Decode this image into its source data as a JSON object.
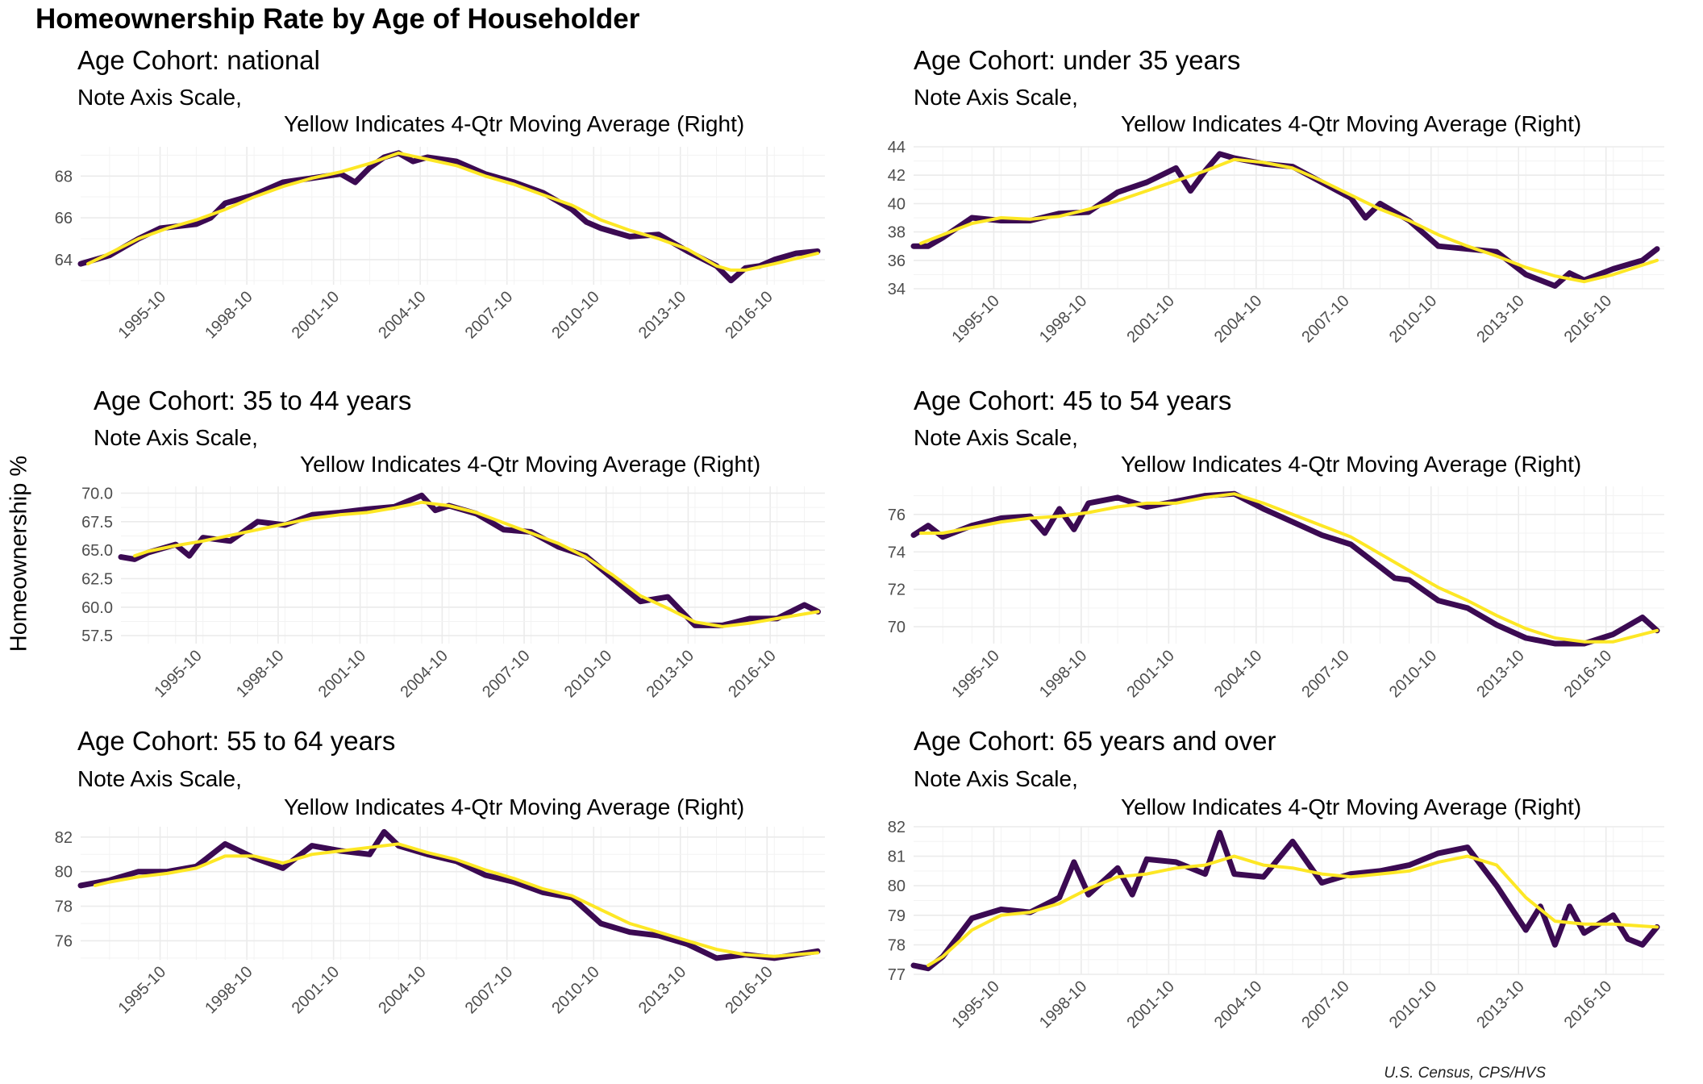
{
  "title": "Homeownership Rate by Age of Householder",
  "ylabel": "Homeownership %",
  "caption": "U.S. Census, CPS/HVS",
  "colors": {
    "series": "#3b0a52",
    "moving_average": "#fde725",
    "grid": "#ebebeb"
  },
  "chart_data": [
    {
      "type": "line",
      "title": "Age Cohort: national",
      "subtitle_line1": "Note Axis Scale,",
      "subtitle_line2": "Yellow Indicates 4-Qtr Moving Average (Right)",
      "xlabel": "",
      "ylabel": "Homeownership %",
      "x_ticks": [
        "1995-10",
        "1998-10",
        "2001-10",
        "2004-10",
        "2007-10",
        "2010-10",
        "2013-10",
        "2016-10"
      ],
      "x_range": [
        1993.0,
        2018.75
      ],
      "ylim": [
        62.8,
        69.4
      ],
      "y_ticks": [
        64,
        66,
        68
      ],
      "series": [
        {
          "name": "",
          "x": [
            1993.0,
            1994.0,
            1995.0,
            1995.75,
            1997.0,
            1997.5,
            1998.0,
            1999.0,
            2000.0,
            2001.0,
            2002.0,
            2002.5,
            2003.0,
            2003.5,
            2004.0,
            2004.5,
            2005.0,
            2006.0,
            2007.0,
            2008.0,
            2009.0,
            2010.0,
            2010.5,
            2011.0,
            2012.0,
            2013.0,
            2014.0,
            2015.0,
            2015.5,
            2016.0,
            2016.5,
            2017.0,
            2017.75,
            2018.5
          ],
          "y": [
            63.8,
            64.2,
            65.0,
            65.5,
            65.7,
            66.0,
            66.7,
            67.1,
            67.7,
            67.9,
            68.1,
            67.7,
            68.4,
            68.9,
            69.1,
            68.7,
            68.9,
            68.7,
            68.1,
            67.7,
            67.2,
            66.4,
            65.8,
            65.5,
            65.1,
            65.2,
            64.4,
            63.7,
            63.0,
            63.6,
            63.7,
            64.0,
            64.3,
            64.4
          ]
        },
        {
          "name": "",
          "x": [
            1993.25,
            1994.0,
            1995.0,
            1996.0,
            1997.0,
            1998.0,
            1999.0,
            2000.0,
            2001.0,
            2002.0,
            2003.0,
            2004.0,
            2005.0,
            2006.0,
            2007.0,
            2008.0,
            2009.0,
            2010.0,
            2011.0,
            2012.0,
            2013.0,
            2014.0,
            2015.0,
            2015.5,
            2016.0,
            2017.0,
            2018.5
          ],
          "y": [
            63.8,
            64.3,
            65.0,
            65.5,
            65.9,
            66.4,
            67.0,
            67.5,
            67.9,
            68.2,
            68.6,
            69.1,
            68.8,
            68.5,
            68.0,
            67.6,
            67.1,
            66.6,
            65.9,
            65.4,
            65.0,
            64.5,
            63.7,
            63.5,
            63.5,
            63.8,
            64.3
          ]
        }
      ]
    },
    {
      "type": "line",
      "title": "Age Cohort: under 35 years",
      "subtitle_line1": "Note Axis Scale,",
      "subtitle_line2": "Yellow Indicates 4-Qtr Moving Average (Right)",
      "xlabel": "",
      "ylabel": "Homeownership %",
      "x_ticks": [
        "1995-10",
        "1998-10",
        "2001-10",
        "2004-10",
        "2007-10",
        "2010-10",
        "2013-10",
        "2016-10"
      ],
      "x_range": [
        1993.0,
        2018.75
      ],
      "ylim": [
        34,
        44
      ],
      "y_ticks": [
        34,
        36,
        38,
        40,
        42,
        44
      ],
      "series": [
        {
          "name": "",
          "x": [
            1993.0,
            1993.5,
            1994.0,
            1995.0,
            1996.0,
            1997.0,
            1998.0,
            1999.0,
            2000.0,
            2001.0,
            2002.0,
            2002.5,
            2003.0,
            2003.5,
            2004.0,
            2005.0,
            2006.0,
            2007.0,
            2008.0,
            2008.5,
            2009.0,
            2010.0,
            2011.0,
            2012.0,
            2013.0,
            2014.0,
            2015.0,
            2015.5,
            2016.0,
            2017.0,
            2018.0,
            2018.5
          ],
          "y": [
            37.0,
            37.0,
            37.6,
            39.0,
            38.8,
            38.8,
            39.3,
            39.4,
            40.8,
            41.5,
            42.5,
            40.9,
            42.3,
            43.5,
            43.2,
            42.8,
            42.6,
            41.5,
            40.4,
            39.0,
            40.0,
            38.8,
            37.0,
            36.8,
            36.6,
            35.0,
            34.2,
            35.1,
            34.6,
            35.4,
            36.0,
            36.8
          ]
        },
        {
          "name": "",
          "x": [
            1993.25,
            1994.0,
            1995.0,
            1996.0,
            1997.0,
            1998.0,
            1999.0,
            2000.0,
            2001.0,
            2002.0,
            2003.0,
            2004.0,
            2005.0,
            2006.0,
            2007.0,
            2008.0,
            2009.0,
            2010.0,
            2011.0,
            2012.0,
            2013.0,
            2014.0,
            2015.0,
            2016.0,
            2017.0,
            2018.5
          ],
          "y": [
            37.2,
            37.8,
            38.6,
            39.0,
            38.9,
            39.1,
            39.6,
            40.2,
            40.9,
            41.6,
            42.3,
            43.1,
            42.9,
            42.5,
            41.6,
            40.6,
            39.6,
            38.8,
            37.8,
            37.0,
            36.3,
            35.5,
            34.9,
            34.5,
            35.0,
            36.0
          ]
        }
      ]
    },
    {
      "type": "line",
      "title": "Age Cohort: 35 to 44 years",
      "subtitle_line1": "Note Axis Scale,",
      "subtitle_line2": "Yellow Indicates 4-Qtr Moving Average (Right)",
      "xlabel": "",
      "ylabel": "Homeownership %",
      "x_ticks": [
        "1995-10",
        "1998-10",
        "2001-10",
        "2004-10",
        "2007-10",
        "2010-10",
        "2013-10",
        "2016-10"
      ],
      "x_range": [
        1993.0,
        2018.75
      ],
      "ylim": [
        56.8,
        70.6
      ],
      "y_ticks": [
        57.5,
        60.0,
        62.5,
        65.0,
        67.5,
        70.0
      ],
      "series": [
        {
          "name": "",
          "x": [
            1993.0,
            1993.5,
            1994.0,
            1995.0,
            1995.5,
            1996.0,
            1997.0,
            1998.0,
            1999.0,
            2000.0,
            2001.0,
            2002.0,
            2003.0,
            2004.0,
            2004.5,
            2005.0,
            2006.0,
            2007.0,
            2008.0,
            2009.0,
            2010.0,
            2011.0,
            2012.0,
            2013.0,
            2014.0,
            2015.0,
            2016.0,
            2017.0,
            2018.0,
            2018.5
          ],
          "y": [
            64.4,
            64.2,
            64.8,
            65.5,
            64.5,
            66.1,
            65.8,
            67.5,
            67.2,
            68.1,
            68.3,
            68.6,
            68.8,
            69.8,
            68.5,
            68.9,
            68.2,
            66.8,
            66.6,
            65.3,
            64.5,
            62.5,
            60.5,
            60.9,
            58.4,
            58.4,
            59.0,
            59.0,
            60.2,
            59.6
          ]
        },
        {
          "name": "",
          "x": [
            1993.5,
            1994.0,
            1995.0,
            1996.0,
            1997.0,
            1998.0,
            1999.0,
            2000.0,
            2001.0,
            2002.0,
            2003.0,
            2004.0,
            2005.0,
            2006.0,
            2007.0,
            2008.0,
            2009.0,
            2010.0,
            2011.0,
            2012.0,
            2013.0,
            2014.0,
            2015.0,
            2016.0,
            2017.0,
            2018.5
          ],
          "y": [
            64.5,
            64.9,
            65.4,
            65.8,
            66.3,
            66.8,
            67.3,
            67.8,
            68.1,
            68.3,
            68.7,
            69.2,
            68.9,
            68.3,
            67.4,
            66.5,
            65.6,
            64.4,
            62.8,
            61.0,
            59.9,
            58.7,
            58.3,
            58.6,
            59.0,
            59.6
          ]
        }
      ]
    },
    {
      "type": "line",
      "title": "Age Cohort: 45 to 54 years",
      "subtitle_line1": "Note Axis Scale,",
      "subtitle_line2": "Yellow Indicates 4-Qtr Moving Average (Right)",
      "xlabel": "",
      "ylabel": "Homeownership %",
      "x_ticks": [
        "1995-10",
        "1998-10",
        "2001-10",
        "2004-10",
        "2007-10",
        "2010-10",
        "2013-10",
        "2016-10"
      ],
      "x_range": [
        1993.0,
        2018.75
      ],
      "ylim": [
        69.1,
        77.5
      ],
      "y_ticks": [
        70,
        72,
        74,
        76
      ],
      "series": [
        {
          "name": "",
          "x": [
            1993.0,
            1993.5,
            1994.0,
            1995.0,
            1996.0,
            1997.0,
            1997.5,
            1998.0,
            1998.5,
            1999.0,
            2000.0,
            2001.0,
            2002.0,
            2003.0,
            2004.0,
            2005.0,
            2006.0,
            2007.0,
            2008.0,
            2009.0,
            2009.5,
            2010.0,
            2011.0,
            2012.0,
            2013.0,
            2014.0,
            2015.0,
            2016.0,
            2017.0,
            2018.0,
            2018.5
          ],
          "y": [
            74.9,
            75.4,
            74.8,
            75.4,
            75.8,
            75.9,
            75.0,
            76.3,
            75.2,
            76.6,
            76.9,
            76.4,
            76.7,
            77.0,
            77.1,
            76.3,
            75.6,
            74.9,
            74.4,
            73.2,
            72.6,
            72.5,
            71.4,
            71.0,
            70.1,
            69.4,
            69.1,
            69.1,
            69.6,
            70.5,
            69.8
          ]
        },
        {
          "name": "",
          "x": [
            1993.25,
            1994.0,
            1995.0,
            1996.0,
            1997.0,
            1998.0,
            1999.0,
            2000.0,
            2001.0,
            2002.0,
            2003.0,
            2004.0,
            2005.0,
            2006.0,
            2007.0,
            2008.0,
            2009.0,
            2010.0,
            2011.0,
            2012.0,
            2013.0,
            2014.0,
            2015.0,
            2016.0,
            2017.0,
            2018.5
          ],
          "y": [
            75.0,
            75.0,
            75.3,
            75.6,
            75.8,
            75.9,
            76.1,
            76.4,
            76.6,
            76.6,
            76.9,
            77.1,
            76.6,
            76.0,
            75.4,
            74.8,
            73.9,
            73.0,
            72.1,
            71.4,
            70.6,
            69.9,
            69.4,
            69.2,
            69.2,
            69.8
          ]
        }
      ]
    },
    {
      "type": "line",
      "title": "Age Cohort: 55 to 64 years",
      "subtitle_line1": "Note Axis Scale,",
      "subtitle_line2": "Yellow Indicates 4-Qtr Moving Average (Right)",
      "xlabel": "",
      "ylabel": "Homeownership %",
      "x_ticks": [
        "1995-10",
        "1998-10",
        "2001-10",
        "2004-10",
        "2007-10",
        "2010-10",
        "2013-10",
        "2016-10"
      ],
      "x_range": [
        1993.0,
        2018.75
      ],
      "ylim": [
        74.9,
        82.6
      ],
      "y_ticks": [
        76,
        78,
        80,
        82
      ],
      "series": [
        {
          "name": "",
          "x": [
            1993.0,
            1994.0,
            1995.0,
            1996.0,
            1997.0,
            1998.0,
            1999.0,
            2000.0,
            2001.0,
            2002.0,
            2003.0,
            2003.5,
            2004.0,
            2005.0,
            2006.0,
            2007.0,
            2008.0,
            2009.0,
            2010.0,
            2011.0,
            2012.0,
            2013.0,
            2014.0,
            2015.0,
            2016.0,
            2017.0,
            2018.5
          ],
          "y": [
            79.2,
            79.5,
            80.0,
            80.0,
            80.3,
            81.6,
            80.8,
            80.2,
            81.5,
            81.2,
            81.0,
            82.3,
            81.5,
            81.0,
            80.6,
            79.8,
            79.4,
            78.8,
            78.5,
            77.0,
            76.5,
            76.3,
            75.8,
            75.0,
            75.2,
            75.0,
            75.4
          ]
        },
        {
          "name": "",
          "x": [
            1993.5,
            1994.0,
            1995.0,
            1996.0,
            1997.0,
            1998.0,
            1999.0,
            2000.0,
            2001.0,
            2002.0,
            2003.0,
            2004.0,
            2005.0,
            2006.0,
            2007.0,
            2008.0,
            2009.0,
            2010.0,
            2011.0,
            2012.0,
            2013.0,
            2014.0,
            2015.0,
            2016.0,
            2017.0,
            2018.5
          ],
          "y": [
            79.2,
            79.4,
            79.7,
            79.9,
            80.2,
            80.9,
            80.9,
            80.5,
            81.0,
            81.2,
            81.4,
            81.6,
            81.1,
            80.7,
            80.1,
            79.6,
            79.0,
            78.6,
            77.8,
            77.0,
            76.5,
            76.0,
            75.5,
            75.2,
            75.1,
            75.3
          ]
        }
      ]
    },
    {
      "type": "line",
      "title": "Age Cohort: 65 years and over",
      "subtitle_line1": "Note Axis Scale,",
      "subtitle_line2": "Yellow Indicates 4-Qtr Moving Average (Right)",
      "xlabel": "",
      "ylabel": "Homeownership %",
      "x_ticks": [
        "1995-10",
        "1998-10",
        "2001-10",
        "2004-10",
        "2007-10",
        "2010-10",
        "2013-10",
        "2016-10"
      ],
      "x_range": [
        1993.0,
        2018.75
      ],
      "ylim": [
        77,
        82
      ],
      "y_ticks": [
        77,
        78,
        79,
        80,
        81,
        82
      ],
      "series": [
        {
          "name": "",
          "x": [
            1993.0,
            1993.5,
            1994.0,
            1995.0,
            1996.0,
            1997.0,
            1998.0,
            1998.5,
            1999.0,
            2000.0,
            2000.5,
            2001.0,
            2002.0,
            2003.0,
            2003.5,
            2004.0,
            2005.0,
            2006.0,
            2007.0,
            2008.0,
            2009.0,
            2010.0,
            2011.0,
            2012.0,
            2013.0,
            2014.0,
            2014.5,
            2015.0,
            2015.5,
            2016.0,
            2017.0,
            2017.5,
            2018.0,
            2018.5
          ],
          "y": [
            77.3,
            77.2,
            77.6,
            78.9,
            79.2,
            79.1,
            79.6,
            80.8,
            79.7,
            80.6,
            79.7,
            80.9,
            80.8,
            80.4,
            81.8,
            80.4,
            80.3,
            81.5,
            80.1,
            80.4,
            80.5,
            80.7,
            81.1,
            81.3,
            80.0,
            78.5,
            79.3,
            78.0,
            79.3,
            78.4,
            79.0,
            78.2,
            78.0,
            78.6
          ]
        },
        {
          "name": "",
          "x": [
            1993.5,
            1994.0,
            1995.0,
            1996.0,
            1997.0,
            1998.0,
            1999.0,
            2000.0,
            2001.0,
            2002.0,
            2003.0,
            2004.0,
            2005.0,
            2006.0,
            2007.0,
            2008.0,
            2009.0,
            2010.0,
            2011.0,
            2012.0,
            2013.0,
            2014.0,
            2015.0,
            2016.0,
            2017.0,
            2018.5
          ],
          "y": [
            77.3,
            77.6,
            78.5,
            79.0,
            79.1,
            79.4,
            79.9,
            80.3,
            80.4,
            80.6,
            80.7,
            81.0,
            80.7,
            80.6,
            80.4,
            80.3,
            80.4,
            80.5,
            80.8,
            81.0,
            80.7,
            79.6,
            78.8,
            78.7,
            78.7,
            78.6
          ]
        }
      ]
    }
  ]
}
